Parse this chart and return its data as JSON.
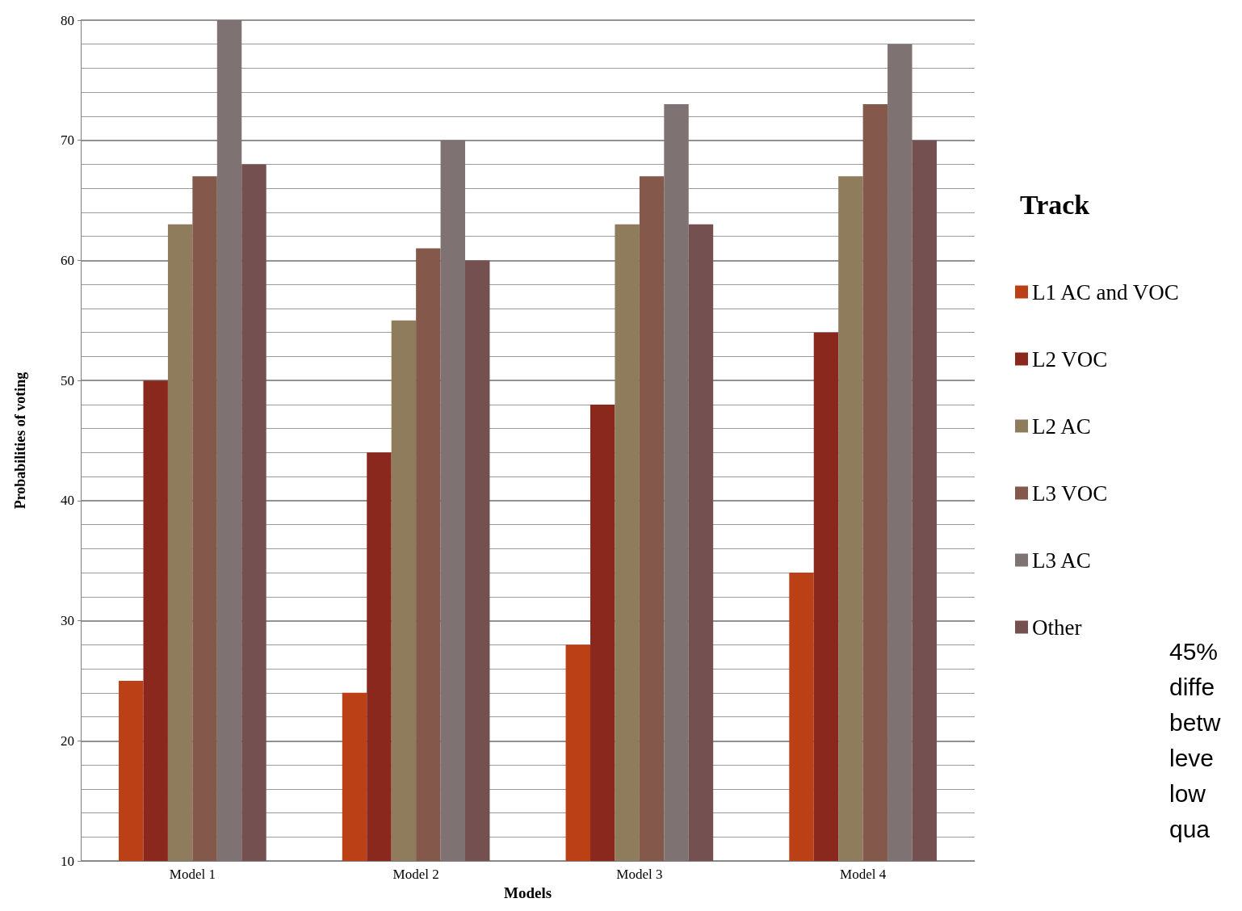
{
  "chart_data": {
    "type": "bar",
    "xlabel": "Models",
    "ylabel": "Probabilities of voting",
    "legend_title": "Track",
    "categories": [
      "Model 1",
      "Model 2",
      "Model 3",
      "Model 4"
    ],
    "series": [
      {
        "name": "L1 AC and VOC",
        "color": "#bb4016",
        "values": [
          25,
          24,
          28,
          34
        ]
      },
      {
        "name": "L2 VOC",
        "color": "#8b281e",
        "values": [
          50,
          44,
          48,
          54
        ]
      },
      {
        "name": "L2 AC",
        "color": "#8f7c5c",
        "values": [
          63,
          55,
          63,
          67
        ]
      },
      {
        "name": "L3 VOC",
        "color": "#84584a",
        "values": [
          67,
          61,
          67,
          73
        ]
      },
      {
        "name": "L3 AC",
        "color": "#7f7272",
        "values": [
          80,
          70,
          73,
          78
        ]
      },
      {
        "name": "Other",
        "color": "#745050",
        "values": [
          68,
          60,
          63,
          70
        ]
      }
    ],
    "ylim": [
      10,
      80
    ],
    "yticks": [
      10,
      20,
      30,
      40,
      50,
      60,
      70,
      80
    ],
    "grid": "y",
    "legend": "right",
    "annotations": [
      "45%\ndiffe\nbetw\nleve\nlow\nqua"
    ]
  }
}
